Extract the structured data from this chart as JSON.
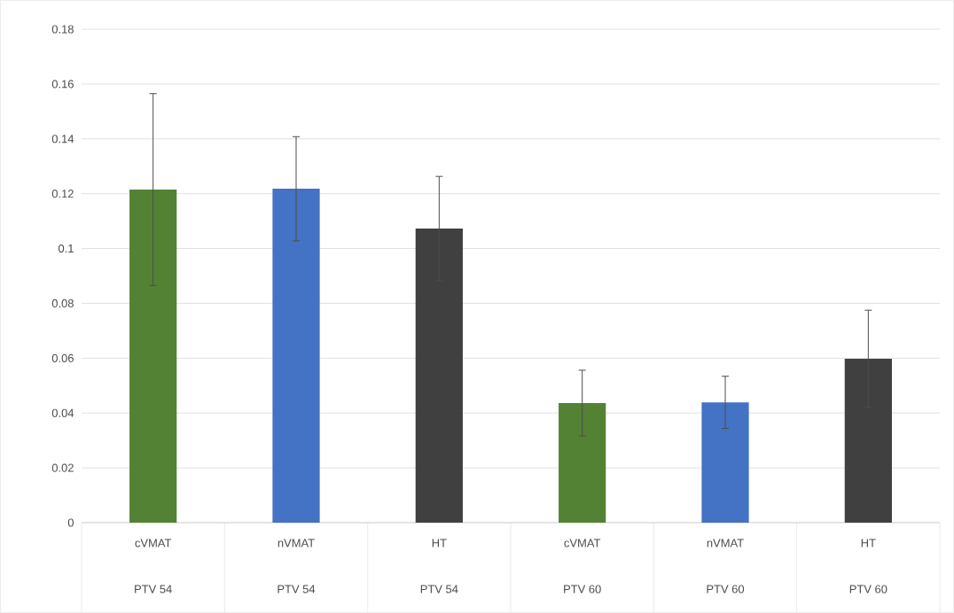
{
  "chart_data": {
    "type": "bar",
    "categories": [
      "cVMAT",
      "nVMAT",
      "HT",
      "cVMAT",
      "nVMAT",
      "HT"
    ],
    "values": [
      0.1215,
      0.1218,
      0.1073,
      0.0436,
      0.0439,
      0.0598
    ],
    "errors": [
      0.035,
      0.019,
      0.019,
      0.012,
      0.0095,
      0.0177
    ],
    "colors": [
      "#548235",
      "#4472c4",
      "#404040",
      "#548235",
      "#4472c4",
      "#404040"
    ],
    "annotations": [
      "PTV 54",
      "PTV 54",
      "PTV 54",
      "PTV 60",
      "PTV 60",
      "PTV 60"
    ],
    "ylim": [
      0,
      0.18
    ],
    "yticks": [
      0,
      0.02,
      0.04,
      0.06,
      0.08,
      0.1,
      0.12,
      0.14,
      0.16,
      0.18
    ],
    "grid": "y"
  }
}
